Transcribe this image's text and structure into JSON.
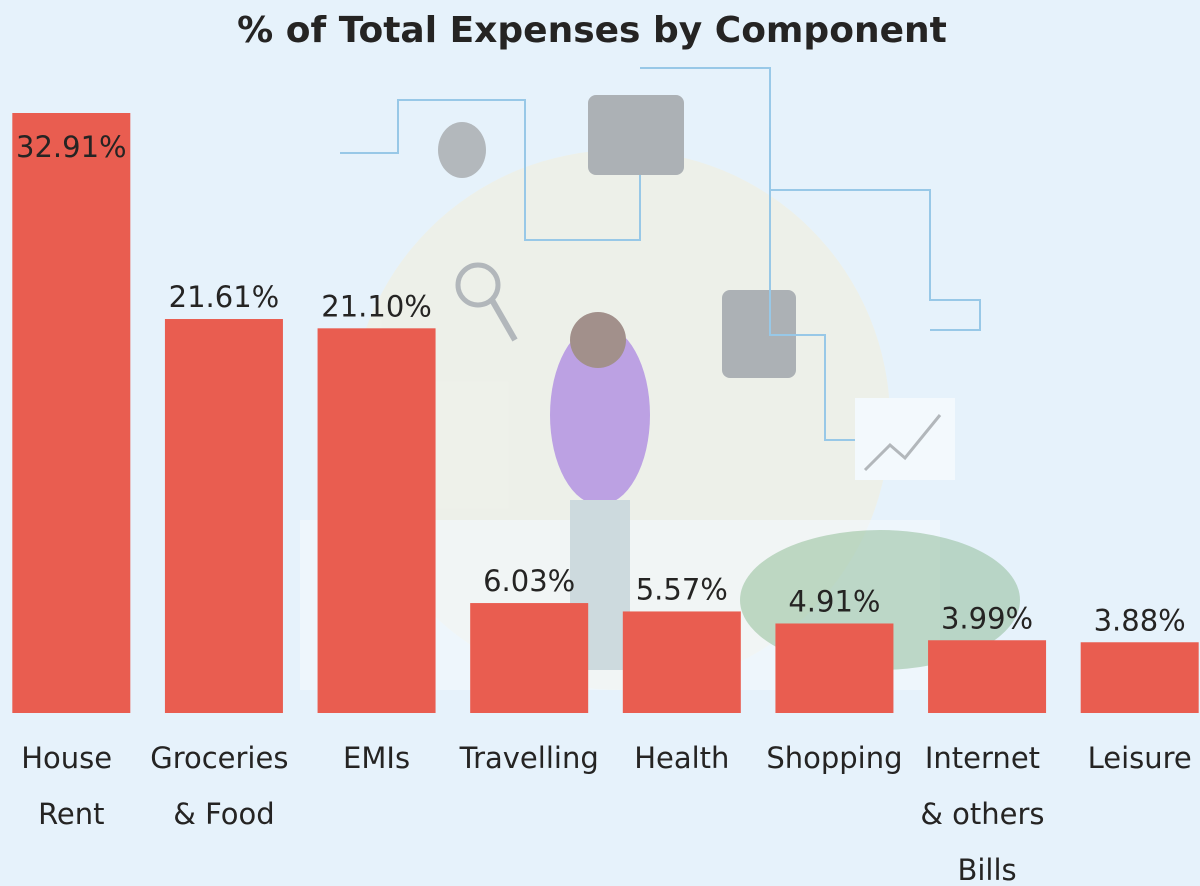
{
  "chart_data": {
    "type": "bar",
    "title": "% of Total Expenses by Component",
    "categories": [
      "House Rent",
      "Groceries & Food",
      "EMIs",
      "Travelling",
      "Health",
      "Shopping",
      "Internet & others Bills",
      "Leisure"
    ],
    "values": [
      32.91,
      21.61,
      21.1,
      6.03,
      5.57,
      4.91,
      3.99,
      3.88
    ],
    "value_labels": [
      "32.91%",
      "21.61%",
      "21.10%",
      "6.03%",
      "5.57%",
      "4.91%",
      "3.99%",
      "3.88%"
    ],
    "color": "#e95d50"
  }
}
